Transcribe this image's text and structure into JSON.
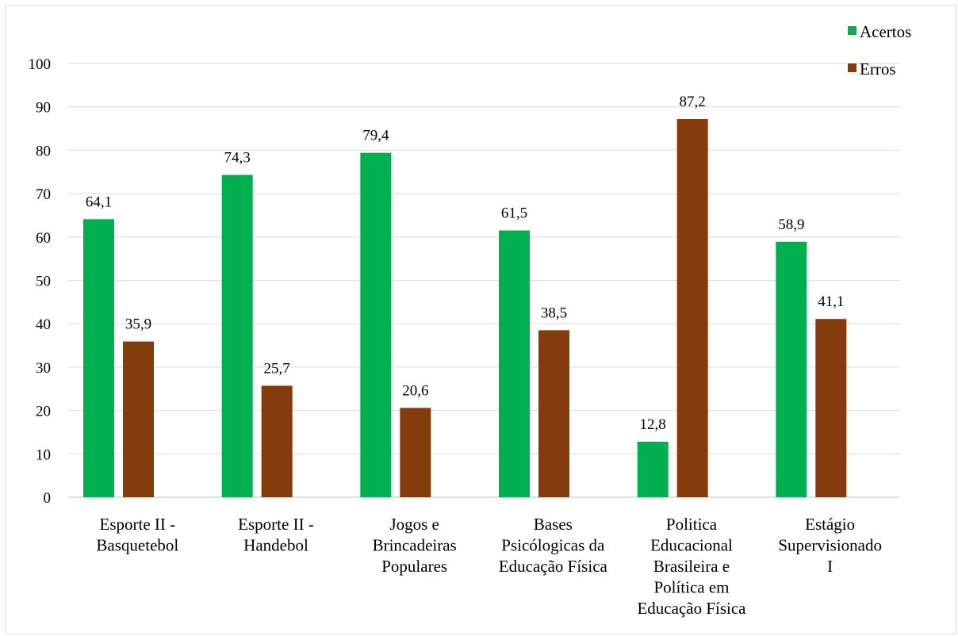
{
  "chart_data": {
    "type": "bar",
    "title": "",
    "xlabel": "",
    "ylabel": "",
    "ylim": [
      0,
      100
    ],
    "yticks": [
      "0",
      "10",
      "20",
      "30",
      "40",
      "50",
      "60",
      "70",
      "80",
      "90",
      "100"
    ],
    "grid": true,
    "legend_position": "top-right",
    "categories": [
      [
        "Esporte II -",
        "Basquetebol"
      ],
      [
        "Esporte II -",
        "Handebol"
      ],
      [
        "Jogos e",
        "Brincadeiras",
        "Populares"
      ],
      [
        "Bases",
        "Psicólogicas da",
        "Educação Física"
      ],
      [
        "Politica",
        "Educacional",
        "Brasileira e",
        "Política em",
        "Educação Física"
      ],
      [
        "Estágio",
        "Supervisionado",
        "I"
      ]
    ],
    "series": [
      {
        "name": "Acertos",
        "color": "#00b050",
        "values": [
          64.1,
          74.3,
          79.4,
          61.5,
          12.8,
          58.9
        ],
        "labels": [
          "64,1",
          "74,3",
          "79,4",
          "61,5",
          "12,8",
          "58,9"
        ]
      },
      {
        "name": "Erros",
        "color": "#843c0c",
        "values": [
          35.9,
          25.7,
          20.6,
          38.5,
          87.2,
          41.1
        ],
        "labels": [
          "35,9",
          "25,7",
          "20,6",
          "38,5",
          "87,2",
          "41,1"
        ]
      }
    ]
  }
}
